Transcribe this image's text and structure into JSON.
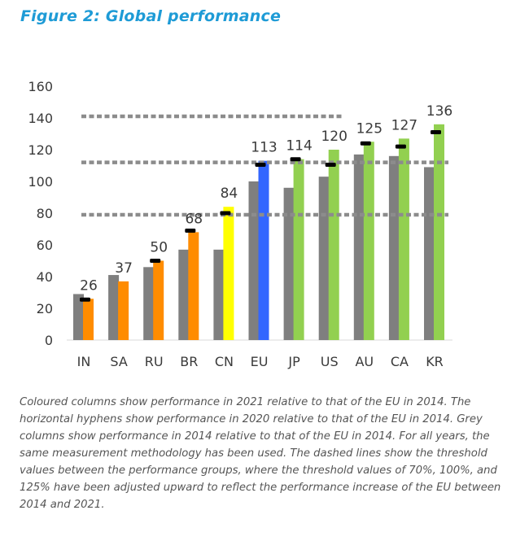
{
  "title": "Figure 2: Global performance",
  "caption": "Coloured columns show performance in 2021 relative to that of the EU in 2014. The horizontal hyphens show performance in 2020 relative to that of the EU in 2014. Grey columns show performance in 2014 relative to that of the EU in 2014. For all years, the same measurement methodology has been used. The dashed lines show the threshold values between the performance groups, where the threshold values of 70%, 100%, and 125% have been adjusted upward to reflect the performance increase of the EU between 2014 and 2021.",
  "colors": {
    "grey": "#7f7f7f",
    "orange": "#ff8c00",
    "yellow": "#ffff00",
    "blue": "#3366ff",
    "green": "#92d050",
    "marker": "#000000",
    "threshold": "#8c8c8c"
  },
  "chart_data": {
    "type": "bar",
    "title": "Figure 2: Global performance",
    "categories": [
      "IN",
      "SA",
      "RU",
      "BR",
      "CN",
      "EU",
      "JP",
      "US",
      "AU",
      "CA",
      "KR"
    ],
    "ylim": [
      0,
      160
    ],
    "yticks": [
      0,
      20,
      40,
      60,
      80,
      100,
      120,
      140,
      160
    ],
    "grid": false,
    "series": [
      {
        "name": "Performance 2014 (relative to EU 2014)",
        "color_key": "grey",
        "values": [
          29,
          41,
          46,
          57,
          57,
          100,
          96,
          103,
          117,
          116,
          109
        ]
      },
      {
        "name": "Performance 2021 (relative to EU 2014)",
        "values": [
          26,
          37,
          50,
          68,
          84,
          113,
          114,
          120,
          125,
          127,
          136
        ],
        "labels": [
          "26",
          "37",
          "50",
          "68",
          "84",
          "113",
          "114",
          "120",
          "125",
          "127",
          "136"
        ],
        "color_keys": [
          "orange",
          "orange",
          "orange",
          "orange",
          "yellow",
          "blue",
          "green",
          "green",
          "green",
          "green",
          "green"
        ]
      },
      {
        "name": "Performance 2020 (relative to EU 2014)",
        "style": "marker",
        "values": [
          25.5,
          null,
          50,
          69,
          80,
          110.5,
          114,
          110.5,
          124,
          122,
          131
        ]
      }
    ],
    "thresholds": [
      {
        "value": 79,
        "x_end_category": "KR"
      },
      {
        "value": 112,
        "x_end_category": "KR"
      },
      {
        "value": 141,
        "x_end_category": "US"
      }
    ]
  }
}
